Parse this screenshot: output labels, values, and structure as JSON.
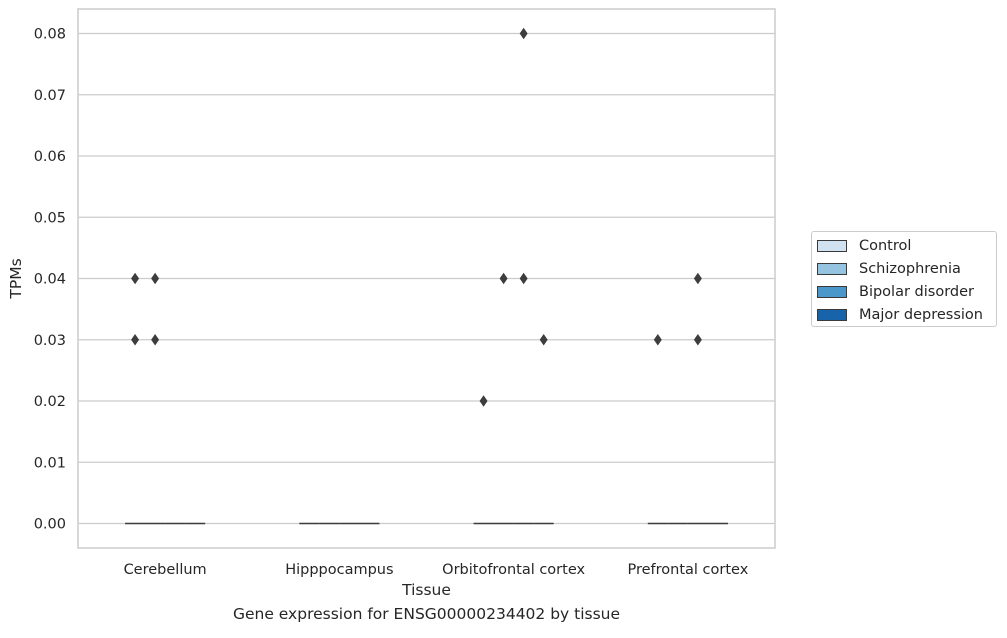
{
  "chart_data": {
    "type": "box",
    "xlabel": "Tissue",
    "ylabel": "TPMs",
    "caption": "Gene expression for ENSG00000234402 by tissue",
    "ylim": [
      -0.004,
      0.084
    ],
    "yticks": [
      0.0,
      0.01,
      0.02,
      0.03,
      0.04,
      0.05,
      0.06,
      0.07,
      0.08
    ],
    "ytick_labels": [
      "0.00",
      "0.01",
      "0.02",
      "0.03",
      "0.04",
      "0.05",
      "0.06",
      "0.07",
      "0.08"
    ],
    "grid": "horizontal",
    "legend_position": "right",
    "categories": [
      "Cerebellum",
      "Hipppocampus",
      "Orbitofrontal cortex",
      "Prefrontal cortex"
    ],
    "series": [
      {
        "name": "Control",
        "color": "#d0e1f2",
        "median": [
          0,
          0,
          0,
          0
        ],
        "outliers": [
          [
            0.03,
            0.04
          ],
          [],
          [
            0.02
          ],
          [
            0.03
          ]
        ]
      },
      {
        "name": "Schizophrenia",
        "color": "#94c4df",
        "median": [
          0,
          0,
          0,
          0
        ],
        "outliers": [
          [
            0.03,
            0.04
          ],
          [],
          [
            0.04
          ],
          []
        ]
      },
      {
        "name": "Bipolar disorder",
        "color": "#4a98c9",
        "median": [
          0,
          0,
          0,
          0
        ],
        "outliers": [
          [],
          [],
          [
            0.08,
            0.04
          ],
          [
            0.03,
            0.04
          ]
        ]
      },
      {
        "name": "Major depression",
        "color": "#1764ab",
        "median": [
          0,
          0,
          0,
          0
        ],
        "outliers": [
          [],
          [],
          [
            0.03
          ],
          []
        ]
      }
    ]
  }
}
